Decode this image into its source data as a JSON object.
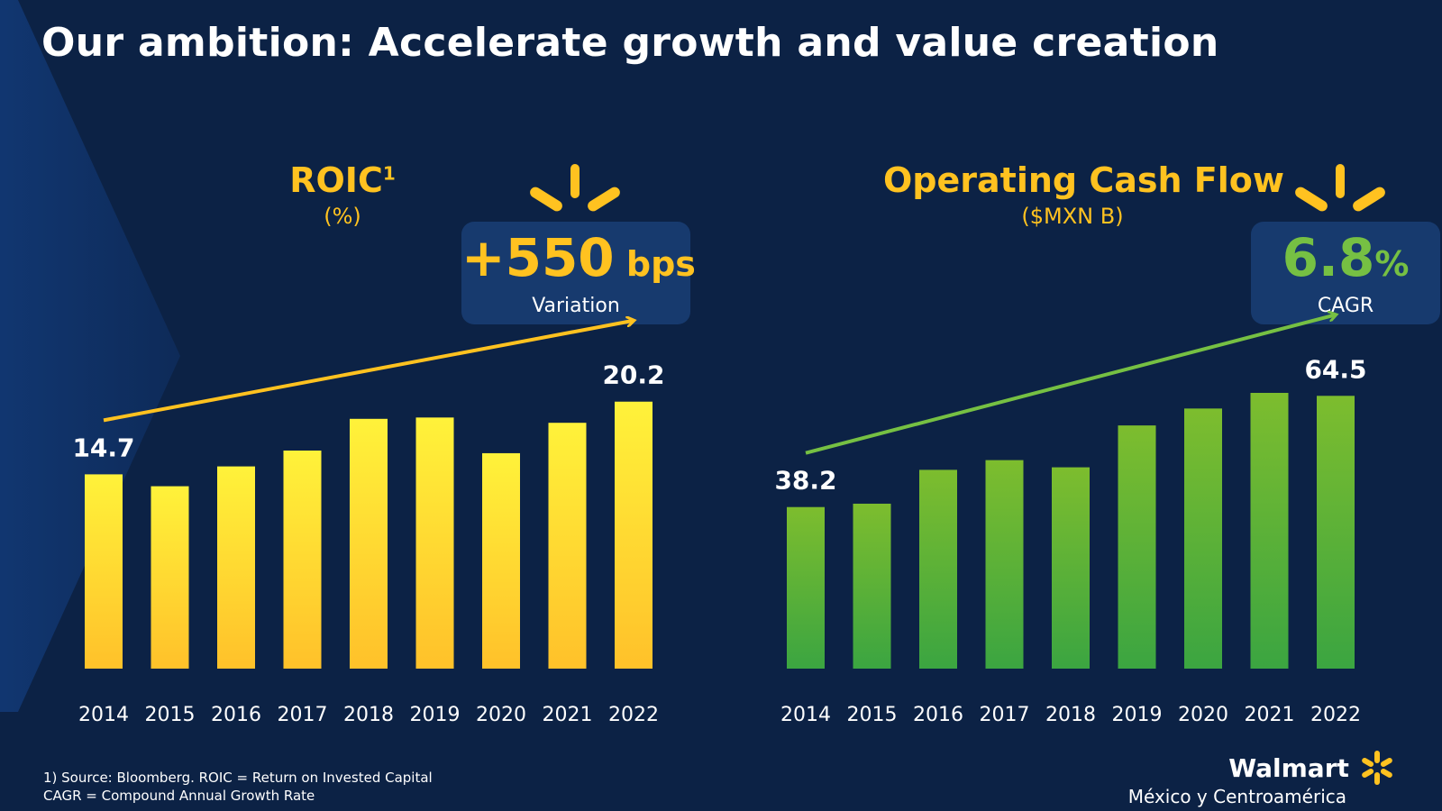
{
  "header": {
    "title": "Our ambition: Accelerate growth and value creation"
  },
  "colors": {
    "background": "#0c2245",
    "accent_yellow": "#ffc220",
    "accent_green": "#76c043",
    "kpi_box": "#173a6e"
  },
  "chart_data": [
    {
      "type": "bar",
      "title": "ROIC",
      "title_superscript": "1",
      "unit": "(%)",
      "categories": [
        "2014",
        "2015",
        "2016",
        "2017",
        "2018",
        "2019",
        "2020",
        "2021",
        "2022"
      ],
      "values": [
        14.7,
        13.8,
        15.3,
        16.5,
        18.9,
        19.0,
        16.3,
        18.6,
        20.2
      ],
      "labeled_values": {
        "first": "14.7",
        "last": "20.2"
      },
      "ylim": [
        0,
        24
      ],
      "grid": false,
      "color_top": "#fff23a",
      "color_bottom": "#ffc12a",
      "trend_arrow": true,
      "kpi": {
        "value": "+550",
        "unit": "bps",
        "label": "Variation"
      }
    },
    {
      "type": "bar",
      "title": "Operating Cash Flow",
      "unit": "($MXN B)",
      "categories": [
        "2014",
        "2015",
        "2016",
        "2017",
        "2018",
        "2019",
        "2020",
        "2021",
        "2022"
      ],
      "values": [
        38.2,
        39.0,
        47.0,
        49.3,
        47.6,
        57.5,
        61.5,
        65.2,
        64.5
      ],
      "labeled_values": {
        "first": "38.2",
        "last": "64.5"
      },
      "ylim": [
        0,
        75
      ],
      "grid": false,
      "color_top": "#7dbd2e",
      "color_bottom": "#3ba541",
      "trend_arrow": true,
      "kpi": {
        "value": "6.8",
        "unit": "%",
        "label": "CAGR"
      }
    }
  ],
  "footnote": {
    "line1": "1)     Source: Bloomberg. ROIC = Return on Invested Capital",
    "line2": "CAGR = Compound Annual Growth Rate"
  },
  "brand": {
    "name": "Walmart",
    "sub": "México y Centroamérica",
    "logo_icon": "spark-icon"
  }
}
